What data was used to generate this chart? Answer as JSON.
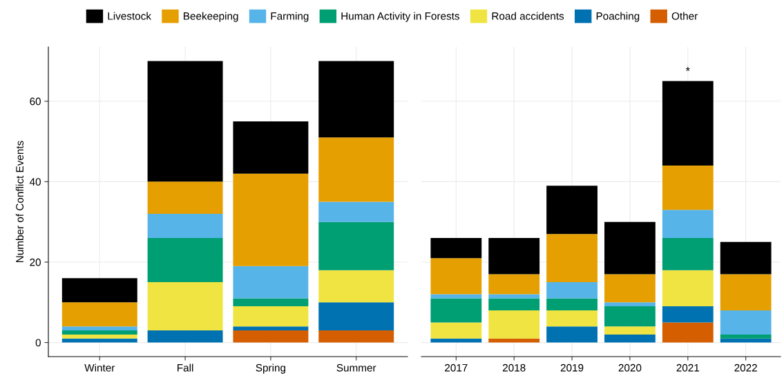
{
  "chart_data": [
    {
      "type": "bar",
      "stacked": true,
      "ylabel": "Number of Conflict Events",
      "categories": [
        "Winter",
        "Fall",
        "Spring",
        "Summer"
      ],
      "ylim": [
        -3.5,
        73.5
      ],
      "yticks": [
        0,
        20,
        40,
        60
      ],
      "grid": true,
      "legend": "top",
      "series": [
        {
          "name": "Other",
          "color": "#d55e00",
          "values": [
            0,
            0,
            3,
            3
          ]
        },
        {
          "name": "Poaching",
          "color": "#0072b2",
          "values": [
            1,
            3,
            1,
            7
          ]
        },
        {
          "name": "Road accidents",
          "color": "#f0e442",
          "values": [
            1,
            12,
            5,
            8
          ]
        },
        {
          "name": "Human Activity in Forests",
          "color": "#009e73",
          "values": [
            1,
            11,
            2,
            12
          ]
        },
        {
          "name": "Farming",
          "color": "#56b4e9",
          "values": [
            1,
            6,
            8,
            5
          ]
        },
        {
          "name": "Beekeeping",
          "color": "#e69f00",
          "values": [
            6,
            8,
            23,
            16
          ]
        },
        {
          "name": "Livestock",
          "color": "#000000",
          "values": [
            6,
            30,
            13,
            19
          ]
        }
      ]
    },
    {
      "type": "bar",
      "stacked": true,
      "categories": [
        "2017",
        "2018",
        "2019",
        "2020",
        "2021",
        "2022"
      ],
      "ylim": [
        -3.5,
        73.5
      ],
      "yticks": [
        0,
        20,
        40,
        60
      ],
      "grid": true,
      "tick_labels": "x",
      "annotations": [
        {
          "text": "*",
          "x": "2021",
          "y": 65
        }
      ],
      "series": [
        {
          "color": "#d55e00",
          "values": [
            0,
            1,
            0,
            0,
            5,
            0
          ]
        },
        {
          "color": "#0072b2",
          "values": [
            1,
            0,
            4,
            2,
            4,
            1
          ]
        },
        {
          "color": "#f0e442",
          "values": [
            4,
            7,
            4,
            2,
            9,
            0
          ]
        },
        {
          "color": "#009e73",
          "values": [
            6,
            3,
            3,
            5,
            8,
            1
          ]
        },
        {
          "color": "#56b4e9",
          "values": [
            1,
            1,
            4,
            1,
            7,
            6
          ]
        },
        {
          "color": "#e69f00",
          "values": [
            9,
            5,
            12,
            7,
            11,
            9
          ]
        },
        {
          "color": "#000000",
          "values": [
            5,
            9,
            12,
            13,
            21,
            8
          ]
        }
      ]
    }
  ]
}
